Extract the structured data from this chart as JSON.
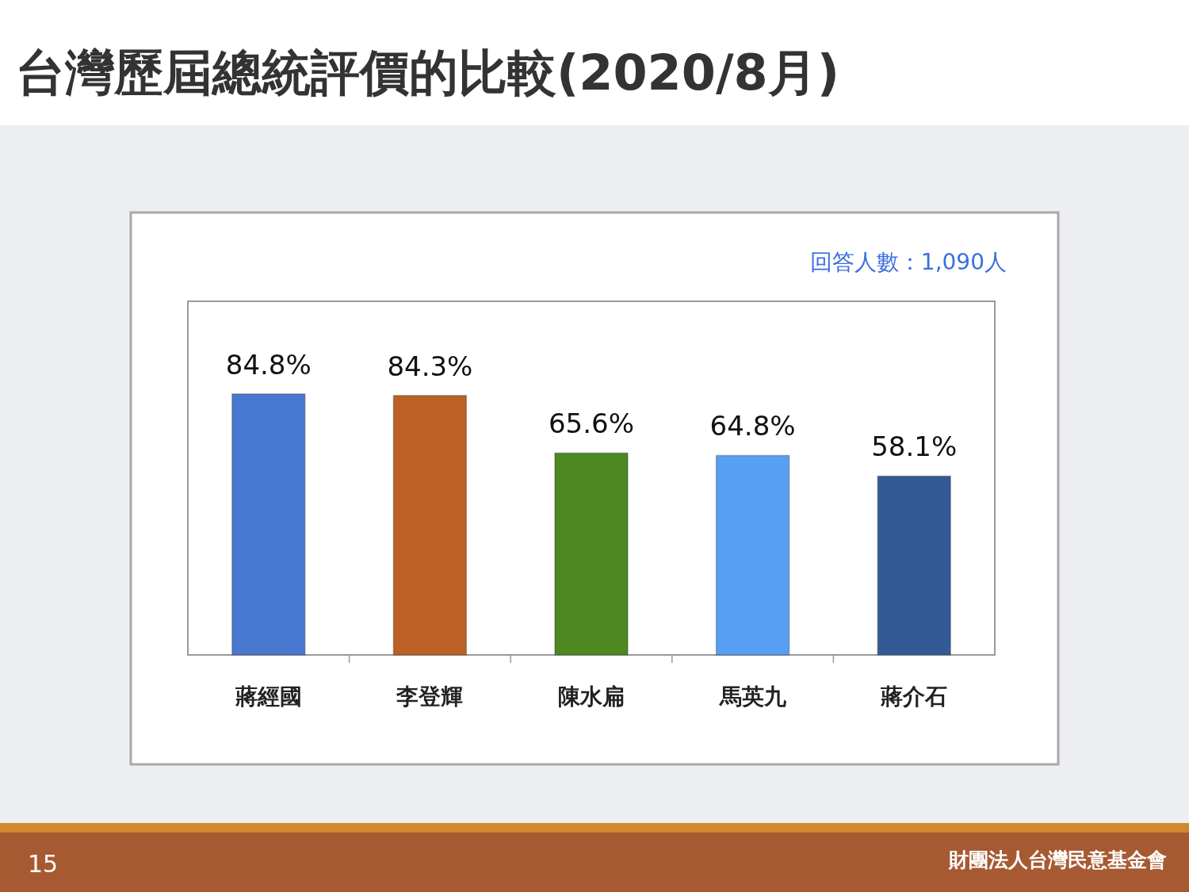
{
  "chart_data": {
    "type": "bar",
    "title": "台灣歷屆總統評價的比較(2020/8月)",
    "categories": [
      "蔣經國",
      "李登輝",
      "陳水扁",
      "馬英九",
      "蔣介石"
    ],
    "values": [
      84.8,
      84.3,
      65.6,
      64.8,
      58.1
    ],
    "colors": [
      "#4878cf",
      "#bb6125",
      "#4e8820",
      "#57a0f5",
      "#345a96"
    ],
    "value_labels": [
      "84.8%",
      "84.3%",
      "65.6%",
      "64.8%",
      "58.1%"
    ],
    "annotations": [
      "回答人數：1,090人",
      "15",
      "財團法人台灣民意基金會"
    ]
  }
}
